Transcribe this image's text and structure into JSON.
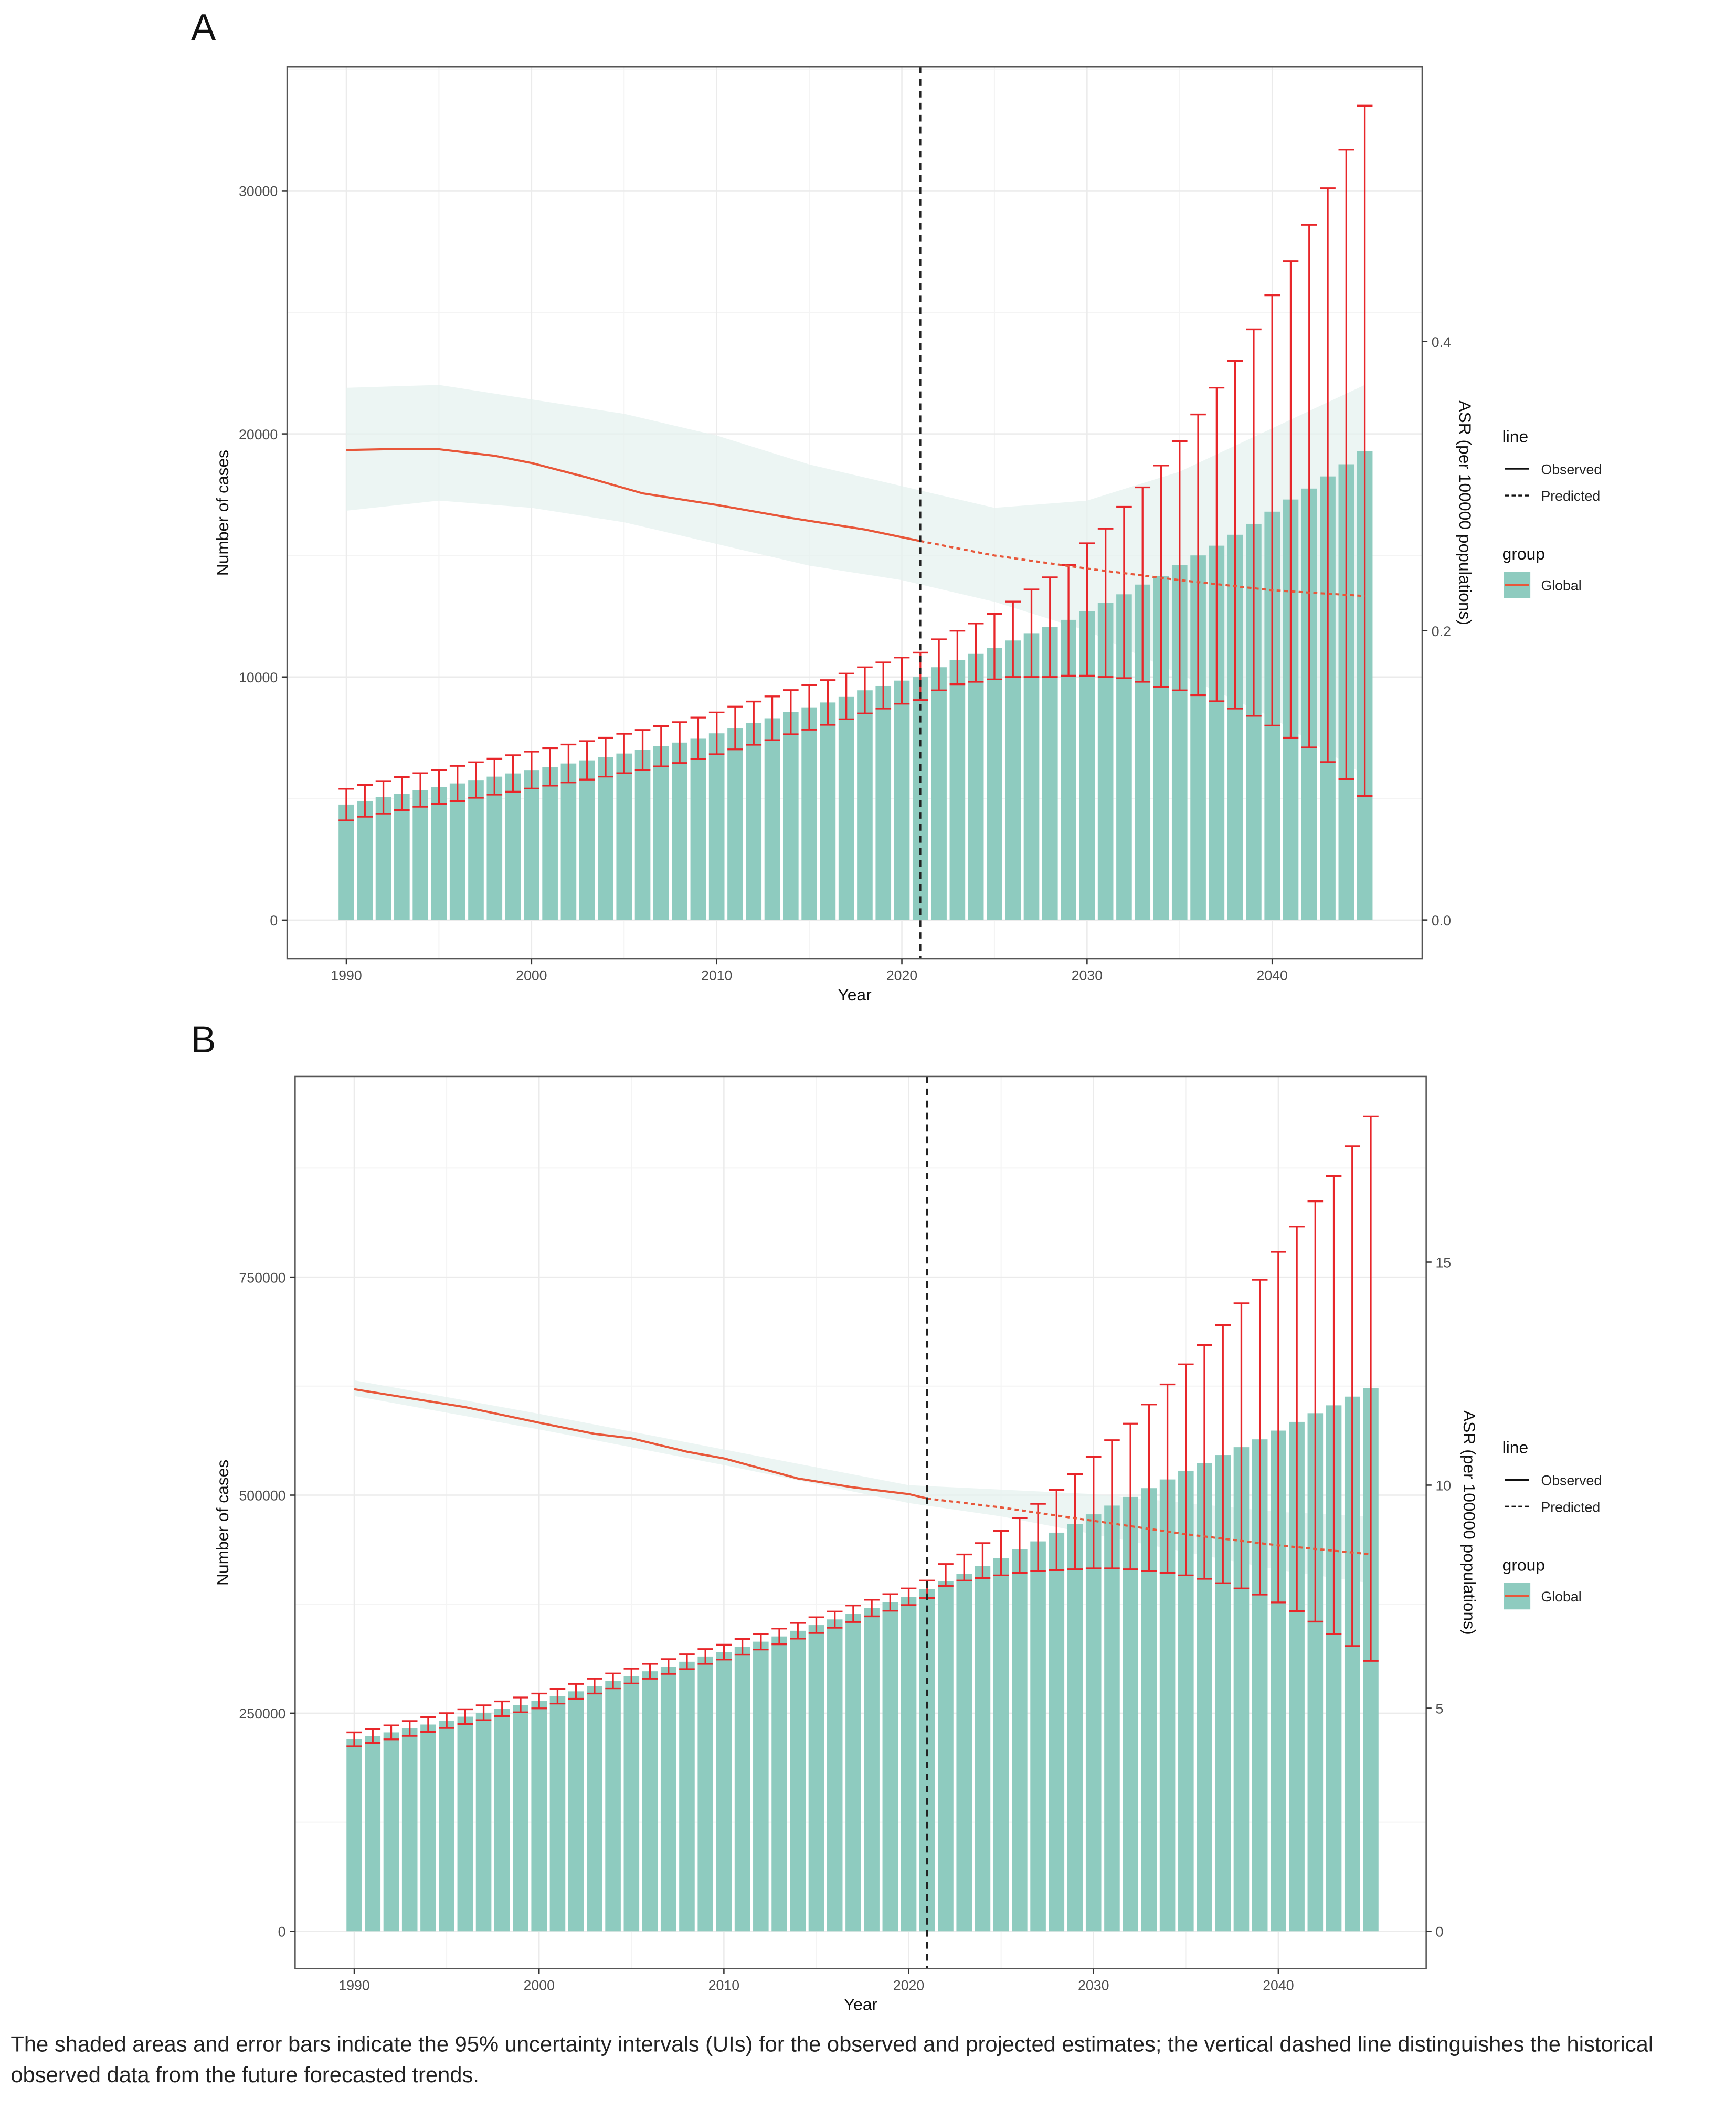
{
  "caption": "The shaded areas and error bars indicate the 95% uncertainty intervals (UIs) for the observed and projected estimates; the vertical dashed line distinguishes the historical observed data from the future forecasted trends.",
  "colors": {
    "bar": "#8ecbbf",
    "line": "#e8573a",
    "errorbar": "#e8262a",
    "band": "#e6f2ef",
    "vline": "#222222"
  },
  "legend": {
    "line_title": "line",
    "observed": "Observed",
    "predicted": "Predicted",
    "group_title": "group",
    "global": "Global"
  },
  "chart_data": [
    {
      "panel_label": "A",
      "type": "bar+line",
      "xlabel": "Year",
      "ylabel": "Number of cases",
      "y2label": "ASR (per 100000 populations)",
      "xlim": [
        1986.8,
        2048.1
      ],
      "ylim": [
        -1600,
        35100
      ],
      "y2lim": [
        -0.027,
        0.59
      ],
      "x_ticks": [
        1990,
        2000,
        2010,
        2020,
        2030,
        2040
      ],
      "x_tick_labels": [
        "1990",
        "2000",
        "2010",
        "2020",
        "2030",
        "2040"
      ],
      "y_ticks": [
        0,
        10000,
        20000,
        30000
      ],
      "y_tick_labels": [
        "0",
        "10000",
        "20000",
        "30000"
      ],
      "y2_ticks": [
        0,
        0.2,
        0.4
      ],
      "y2_tick_labels": [
        "0.0",
        "0.2",
        "0.4"
      ],
      "grid": true,
      "legend_position": "right",
      "divider_year": 2021,
      "years_start": 1990,
      "cases": [
        4750,
        4900,
        5050,
        5200,
        5350,
        5480,
        5620,
        5760,
        5900,
        6030,
        6170,
        6300,
        6440,
        6570,
        6700,
        6850,
        7000,
        7150,
        7300,
        7480,
        7680,
        7900,
        8100,
        8300,
        8550,
        8750,
        8950,
        9200,
        9450,
        9650,
        9850,
        10000,
        10400,
        10700,
        10950,
        11200,
        11500,
        11800,
        12050,
        12350,
        12700,
        13050,
        13400,
        13800,
        14150,
        14600,
        15000,
        15400,
        15850,
        16300,
        16800,
        17300,
        17750,
        18250,
        18750,
        19300
      ],
      "cases_lower": [
        4100,
        4250,
        4380,
        4520,
        4660,
        4780,
        4900,
        5030,
        5160,
        5280,
        5410,
        5530,
        5660,
        5780,
        5900,
        6040,
        6180,
        6320,
        6460,
        6630,
        6820,
        7020,
        7210,
        7400,
        7640,
        7830,
        8030,
        8260,
        8500,
        8700,
        8900,
        9050,
        9450,
        9700,
        9800,
        9900,
        10000,
        10000,
        10000,
        10050,
        10050,
        10000,
        9950,
        9800,
        9600,
        9450,
        9250,
        9000,
        8700,
        8400,
        8000,
        7500,
        7100,
        6500,
        5800,
        5100
      ],
      "cases_upper": [
        5400,
        5560,
        5720,
        5880,
        6040,
        6180,
        6340,
        6490,
        6640,
        6780,
        6930,
        7070,
        7220,
        7360,
        7500,
        7660,
        7820,
        7980,
        8140,
        8330,
        8540,
        8780,
        8990,
        9200,
        9460,
        9670,
        9870,
        10140,
        10400,
        10600,
        10800,
        11000,
        11550,
        11900,
        12200,
        12600,
        13100,
        13600,
        14100,
        14600,
        15500,
        16100,
        17000,
        17800,
        18700,
        19700,
        20800,
        21900,
        23000,
        24300,
        25700,
        27100,
        28600,
        30100,
        31700,
        33500
      ],
      "asr_observed": {
        "x": [
          1990,
          1992,
          1995,
          1998,
          2000,
          2003,
          2006,
          2010,
          2014,
          2018,
          2021
        ],
        "y": [
          0.325,
          0.3255,
          0.3255,
          0.321,
          0.316,
          0.306,
          0.295,
          0.287,
          0.278,
          0.27,
          0.262
        ]
      },
      "asr_predicted": {
        "x": [
          2021,
          2025,
          2030,
          2035,
          2040,
          2045
        ],
        "y": [
          0.262,
          0.252,
          0.243,
          0.235,
          0.228,
          0.224
        ]
      },
      "asr_band": {
        "x": [
          1990,
          1995,
          2000,
          2005,
          2010,
          2015,
          2020,
          2025,
          2030,
          2035,
          2040,
          2045
        ],
        "lower": [
          0.283,
          0.29,
          0.285,
          0.275,
          0.26,
          0.245,
          0.235,
          0.22,
          0.2,
          0.17,
          0.14,
          0.1
        ],
        "upper": [
          0.368,
          0.37,
          0.36,
          0.35,
          0.335,
          0.315,
          0.3,
          0.285,
          0.29,
          0.31,
          0.34,
          0.37
        ]
      }
    },
    {
      "panel_label": "B",
      "type": "bar+line",
      "xlabel": "Year",
      "ylabel": "Number of cases",
      "y2label": "ASR (per 100000 populations)",
      "xlim": [
        1986.8,
        2048.0
      ],
      "ylim": [
        -43000,
        980000
      ],
      "y2lim": [
        -0.84,
        19.16
      ],
      "x_ticks": [
        1990,
        2000,
        2010,
        2020,
        2030,
        2040
      ],
      "x_tick_labels": [
        "1990",
        "2000",
        "2010",
        "2020",
        "2030",
        "2040"
      ],
      "y_ticks": [
        0,
        250000,
        500000,
        750000
      ],
      "y_tick_labels": [
        "0",
        "250000",
        "500000",
        "750000"
      ],
      "y2_ticks": [
        0,
        5,
        10,
        15
      ],
      "y2_tick_labels": [
        "0",
        "5",
        "10",
        "15"
      ],
      "grid": true,
      "legend_position": "right",
      "divider_year": 2021,
      "years_start": 1990,
      "cases": [
        220000,
        224000,
        228000,
        232500,
        237000,
        241500,
        246000,
        250500,
        255000,
        259500,
        264000,
        269500,
        275000,
        281000,
        287000,
        292500,
        298000,
        303500,
        309000,
        315000,
        320000,
        326000,
        332000,
        338000,
        344500,
        351000,
        357500,
        364000,
        370500,
        377000,
        383500,
        392000,
        401000,
        410000,
        419000,
        428000,
        438000,
        447000,
        457000,
        467000,
        478000,
        488000,
        498000,
        508000,
        518000,
        528000,
        537000,
        546000,
        555000,
        564000,
        574000,
        584000,
        594000,
        603000,
        613000,
        623000
      ],
      "cases_lower": [
        212000,
        216000,
        220000,
        224000,
        228500,
        233000,
        237500,
        242000,
        246500,
        251000,
        255500,
        261000,
        266500,
        272500,
        278500,
        284000,
        289500,
        295000,
        300500,
        306500,
        311500,
        317000,
        323000,
        329000,
        335500,
        342000,
        348000,
        354500,
        361000,
        367500,
        374000,
        382000,
        396000,
        402000,
        405000,
        408000,
        411000,
        413000,
        414000,
        415000,
        416000,
        416000,
        415000,
        413000,
        411000,
        408000,
        404000,
        399000,
        393000,
        386000,
        377000,
        367000,
        355000,
        341000,
        327000,
        310000
      ],
      "cases_upper": [
        228000,
        232000,
        236000,
        241000,
        245500,
        250000,
        254500,
        259000,
        263500,
        268000,
        272500,
        278000,
        283500,
        289500,
        295500,
        301000,
        306500,
        312000,
        317500,
        323500,
        328500,
        335000,
        341000,
        347000,
        353500,
        360000,
        366500,
        373500,
        380000,
        386500,
        393000,
        402000,
        421000,
        432000,
        445000,
        459000,
        474000,
        490000,
        506000,
        524000,
        544000,
        563000,
        582000,
        604000,
        627000,
        650000,
        672000,
        695000,
        720000,
        747000,
        779000,
        808000,
        837000,
        866000,
        900000,
        934000
      ],
      "asr_observed": {
        "x": [
          1990,
          1993,
          1996,
          2000,
          2003,
          2005,
          2008,
          2010,
          2014,
          2017,
          2020,
          2021
        ],
        "y": [
          12.15,
          11.95,
          11.75,
          11.4,
          11.15,
          11.05,
          10.75,
          10.6,
          10.15,
          9.95,
          9.8,
          9.7
        ]
      },
      "asr_predicted": {
        "x": [
          2021,
          2025,
          2030,
          2035,
          2040,
          2045
        ],
        "y": [
          9.7,
          9.5,
          9.2,
          8.9,
          8.65,
          8.45
        ]
      },
      "asr_band": {
        "x": [
          1990,
          2000,
          2010,
          2020,
          2025,
          2030,
          2035,
          2040,
          2045
        ],
        "lower": [
          12.0,
          11.25,
          10.45,
          9.6,
          9.3,
          8.9,
          8.5,
          8.1,
          7.8
        ],
        "upper": [
          12.35,
          11.6,
          10.8,
          10.0,
          9.9,
          9.8,
          9.6,
          9.4,
          9.3
        ]
      }
    }
  ]
}
